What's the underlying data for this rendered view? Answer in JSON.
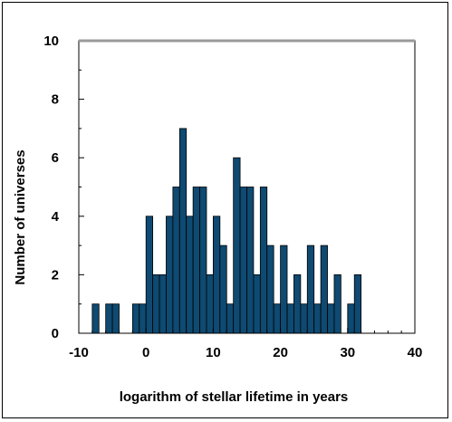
{
  "chart_data": {
    "type": "bar",
    "xlabel": "logarithm of stellar lifetime in years",
    "ylabel": "Number of universes",
    "xlim": [
      -10,
      40
    ],
    "ylim": [
      0,
      10
    ],
    "x_ticks": [
      "-10",
      "0",
      "10",
      "20",
      "30",
      "40"
    ],
    "y_ticks": [
      "0",
      "2",
      "4",
      "6",
      "8",
      "10"
    ],
    "bin_width": 1,
    "bins": [
      {
        "x": -8,
        "value": 1
      },
      {
        "x": -6,
        "value": 1
      },
      {
        "x": -5,
        "value": 1
      },
      {
        "x": -2,
        "value": 1
      },
      {
        "x": -1,
        "value": 1
      },
      {
        "x": 0,
        "value": 4
      },
      {
        "x": 1,
        "value": 2
      },
      {
        "x": 2,
        "value": 2
      },
      {
        "x": 3,
        "value": 4
      },
      {
        "x": 4,
        "value": 5
      },
      {
        "x": 5,
        "value": 7
      },
      {
        "x": 6,
        "value": 4
      },
      {
        "x": 7,
        "value": 5
      },
      {
        "x": 8,
        "value": 5
      },
      {
        "x": 9,
        "value": 2
      },
      {
        "x": 10,
        "value": 4
      },
      {
        "x": 11,
        "value": 3
      },
      {
        "x": 12,
        "value": 1
      },
      {
        "x": 13,
        "value": 6
      },
      {
        "x": 14,
        "value": 5
      },
      {
        "x": 15,
        "value": 5
      },
      {
        "x": 16,
        "value": 2
      },
      {
        "x": 17,
        "value": 5
      },
      {
        "x": 18,
        "value": 3
      },
      {
        "x": 19,
        "value": 1
      },
      {
        "x": 20,
        "value": 3
      },
      {
        "x": 21,
        "value": 1
      },
      {
        "x": 22,
        "value": 2
      },
      {
        "x": 23,
        "value": 1
      },
      {
        "x": 24,
        "value": 3
      },
      {
        "x": 25,
        "value": 1
      },
      {
        "x": 26,
        "value": 3
      },
      {
        "x": 27,
        "value": 1
      },
      {
        "x": 28,
        "value": 2
      },
      {
        "x": 30,
        "value": 1
      },
      {
        "x": 31,
        "value": 2
      }
    ],
    "bar_color": "#0e4a72",
    "grid": false,
    "legend": "none"
  }
}
